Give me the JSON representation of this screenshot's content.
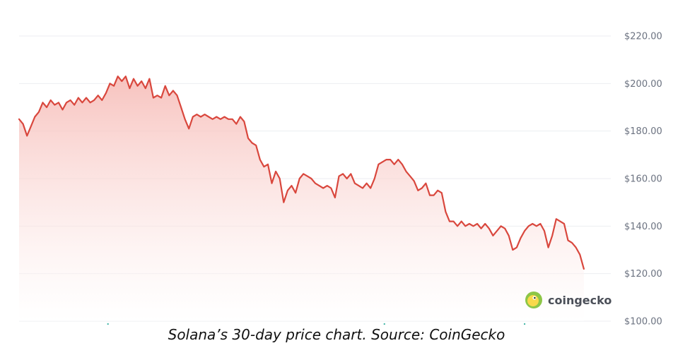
{
  "caption": "Solana’s 30-day price chart. Source: CoinGecko",
  "watermark": {
    "text": "coingecko",
    "icon": "coingecko-gecko-icon"
  },
  "colors": {
    "line": "#d9473d",
    "fill_top": "#f6b8b3",
    "fill_bottom": "#ffffff",
    "grid": "#eceef1",
    "axis_text": "#6b7280",
    "logo_outer": "#8dc647",
    "logo_inner": "#f8d94a"
  },
  "chart_data": {
    "type": "area",
    "title": "",
    "xlabel": "",
    "ylabel": "",
    "ylim": [
      100,
      220
    ],
    "y_ticks": [
      100,
      120,
      140,
      160,
      180,
      200,
      220
    ],
    "y_tick_labels": [
      "$100.00",
      "$120.00",
      "$140.00",
      "$160.00",
      "$180.00",
      "$200.00",
      "$220.00"
    ],
    "x_range": [
      0,
      30
    ],
    "grid": true,
    "legend": "none",
    "series": [
      {
        "name": "",
        "points": [
          [
            0.0,
            185
          ],
          [
            0.2,
            183
          ],
          [
            0.4,
            178
          ],
          [
            0.6,
            182
          ],
          [
            0.8,
            186
          ],
          [
            1.0,
            188
          ],
          [
            1.2,
            192
          ],
          [
            1.4,
            190
          ],
          [
            1.6,
            193
          ],
          [
            1.8,
            191
          ],
          [
            2.0,
            192
          ],
          [
            2.2,
            189
          ],
          [
            2.4,
            192
          ],
          [
            2.6,
            193
          ],
          [
            2.8,
            191
          ],
          [
            3.0,
            194
          ],
          [
            3.2,
            192
          ],
          [
            3.4,
            194
          ],
          [
            3.6,
            192
          ],
          [
            3.8,
            193
          ],
          [
            4.0,
            195
          ],
          [
            4.2,
            193
          ],
          [
            4.4,
            196
          ],
          [
            4.6,
            200
          ],
          [
            4.8,
            199
          ],
          [
            5.0,
            203
          ],
          [
            5.2,
            201
          ],
          [
            5.4,
            203
          ],
          [
            5.6,
            198
          ],
          [
            5.8,
            202
          ],
          [
            6.0,
            199
          ],
          [
            6.2,
            201
          ],
          [
            6.4,
            198
          ],
          [
            6.6,
            202
          ],
          [
            6.8,
            194
          ],
          [
            7.0,
            195
          ],
          [
            7.2,
            194
          ],
          [
            7.4,
            199
          ],
          [
            7.6,
            195
          ],
          [
            7.8,
            197
          ],
          [
            8.0,
            195
          ],
          [
            8.2,
            190
          ],
          [
            8.4,
            185
          ],
          [
            8.6,
            181
          ],
          [
            8.8,
            186
          ],
          [
            9.0,
            187
          ],
          [
            9.2,
            186
          ],
          [
            9.4,
            187
          ],
          [
            9.6,
            186
          ],
          [
            9.8,
            185
          ],
          [
            10.0,
            186
          ],
          [
            10.2,
            185
          ],
          [
            10.4,
            186
          ],
          [
            10.6,
            185
          ],
          [
            10.8,
            185
          ],
          [
            11.0,
            183
          ],
          [
            11.2,
            186
          ],
          [
            11.4,
            184
          ],
          [
            11.6,
            177
          ],
          [
            11.8,
            175
          ],
          [
            12.0,
            174
          ],
          [
            12.2,
            168
          ],
          [
            12.4,
            165
          ],
          [
            12.6,
            166
          ],
          [
            12.8,
            158
          ],
          [
            13.0,
            163
          ],
          [
            13.2,
            160
          ],
          [
            13.4,
            150
          ],
          [
            13.6,
            155
          ],
          [
            13.8,
            157
          ],
          [
            14.0,
            154
          ],
          [
            14.2,
            160
          ],
          [
            14.4,
            162
          ],
          [
            14.6,
            161
          ],
          [
            14.8,
            160
          ],
          [
            15.0,
            158
          ],
          [
            15.2,
            157
          ],
          [
            15.4,
            156
          ],
          [
            15.6,
            157
          ],
          [
            15.8,
            156
          ],
          [
            16.0,
            152
          ],
          [
            16.2,
            161
          ],
          [
            16.4,
            162
          ],
          [
            16.6,
            160
          ],
          [
            16.8,
            162
          ],
          [
            17.0,
            158
          ],
          [
            17.2,
            157
          ],
          [
            17.4,
            156
          ],
          [
            17.6,
            158
          ],
          [
            17.8,
            156
          ],
          [
            18.0,
            160
          ],
          [
            18.2,
            166
          ],
          [
            18.4,
            167
          ],
          [
            18.6,
            168
          ],
          [
            18.8,
            168
          ],
          [
            19.0,
            166
          ],
          [
            19.2,
            168
          ],
          [
            19.4,
            166
          ],
          [
            19.6,
            163
          ],
          [
            19.8,
            161
          ],
          [
            20.0,
            159
          ],
          [
            20.2,
            155
          ],
          [
            20.4,
            156
          ],
          [
            20.6,
            158
          ],
          [
            20.8,
            153
          ],
          [
            21.0,
            153
          ],
          [
            21.2,
            155
          ],
          [
            21.4,
            154
          ],
          [
            21.6,
            146
          ],
          [
            21.8,
            142
          ],
          [
            22.0,
            142
          ],
          [
            22.2,
            140
          ],
          [
            22.4,
            142
          ],
          [
            22.6,
            140
          ],
          [
            22.8,
            141
          ],
          [
            23.0,
            140
          ],
          [
            23.2,
            141
          ],
          [
            23.4,
            139
          ],
          [
            23.6,
            141
          ],
          [
            23.8,
            139
          ],
          [
            24.0,
            136
          ],
          [
            24.2,
            138
          ],
          [
            24.4,
            140
          ],
          [
            24.6,
            139
          ],
          [
            24.8,
            136
          ],
          [
            25.0,
            130
          ],
          [
            25.2,
            131
          ],
          [
            25.4,
            135
          ],
          [
            25.6,
            138
          ],
          [
            25.8,
            140
          ],
          [
            26.0,
            141
          ],
          [
            26.2,
            140
          ],
          [
            26.4,
            141
          ],
          [
            26.6,
            138
          ],
          [
            26.8,
            131
          ],
          [
            27.0,
            136
          ],
          [
            27.2,
            143
          ],
          [
            27.4,
            142
          ],
          [
            27.6,
            141
          ],
          [
            27.8,
            134
          ],
          [
            28.0,
            133
          ],
          [
            28.2,
            131
          ],
          [
            28.4,
            128
          ],
          [
            28.6,
            122
          ]
        ]
      }
    ]
  }
}
